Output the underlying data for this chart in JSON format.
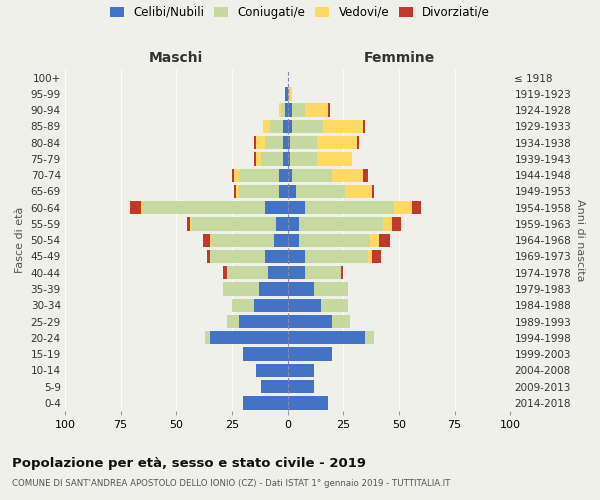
{
  "age_groups": [
    "0-4",
    "5-9",
    "10-14",
    "15-19",
    "20-24",
    "25-29",
    "30-34",
    "35-39",
    "40-44",
    "45-49",
    "50-54",
    "55-59",
    "60-64",
    "65-69",
    "70-74",
    "75-79",
    "80-84",
    "85-89",
    "90-94",
    "95-99",
    "100+"
  ],
  "birth_years": [
    "2014-2018",
    "2009-2013",
    "2004-2008",
    "1999-2003",
    "1994-1998",
    "1989-1993",
    "1984-1988",
    "1979-1983",
    "1974-1978",
    "1969-1973",
    "1964-1968",
    "1959-1963",
    "1954-1958",
    "1949-1953",
    "1944-1948",
    "1939-1943",
    "1934-1938",
    "1929-1933",
    "1924-1928",
    "1919-1923",
    "≤ 1918"
  ],
  "males": {
    "celibe": [
      20,
      12,
      14,
      20,
      35,
      22,
      15,
      13,
      9,
      10,
      6,
      5,
      10,
      4,
      4,
      2,
      2,
      2,
      1,
      1,
      0
    ],
    "coniugato": [
      0,
      0,
      0,
      0,
      2,
      5,
      10,
      16,
      18,
      25,
      28,
      38,
      55,
      18,
      18,
      10,
      8,
      6,
      2,
      0,
      0
    ],
    "vedovo": [
      0,
      0,
      0,
      0,
      0,
      0,
      0,
      0,
      0,
      0,
      1,
      1,
      1,
      1,
      2,
      2,
      4,
      3,
      1,
      0,
      0
    ],
    "divorziato": [
      0,
      0,
      0,
      0,
      0,
      0,
      0,
      0,
      2,
      1,
      3,
      1,
      5,
      1,
      1,
      1,
      1,
      0,
      0,
      0,
      0
    ]
  },
  "females": {
    "celibe": [
      18,
      12,
      12,
      20,
      35,
      20,
      15,
      12,
      8,
      8,
      5,
      5,
      8,
      4,
      2,
      1,
      1,
      2,
      2,
      0,
      0
    ],
    "coniugato": [
      0,
      0,
      0,
      0,
      4,
      8,
      12,
      15,
      16,
      28,
      32,
      38,
      40,
      22,
      18,
      12,
      12,
      14,
      6,
      1,
      0
    ],
    "vedovo": [
      0,
      0,
      0,
      0,
      0,
      0,
      0,
      0,
      0,
      2,
      4,
      4,
      8,
      12,
      14,
      16,
      18,
      18,
      10,
      1,
      0
    ],
    "divorziato": [
      0,
      0,
      0,
      0,
      0,
      0,
      0,
      0,
      1,
      4,
      5,
      4,
      4,
      1,
      2,
      0,
      1,
      1,
      1,
      0,
      0
    ]
  },
  "colors": {
    "celibe": "#4472C4",
    "coniugato": "#c5d9a0",
    "vedovo": "#ffd966",
    "divorziato": "#c0392b"
  },
  "legend_labels": [
    "Celibi/Nubili",
    "Coniugati/e",
    "Vedovi/e",
    "Divorziati/e"
  ],
  "title": "Popolazione per età, sesso e stato civile - 2019",
  "subtitle": "COMUNE DI SANT'ANDREA APOSTOLO DELLO IONIO (CZ) - Dati ISTAT 1° gennaio 2019 - TUTTITALIA.IT",
  "xlabel_left": "Maschi",
  "xlabel_right": "Femmine",
  "ylabel_left": "Fasce di età",
  "ylabel_right": "Anni di nascita",
  "xlim": 100,
  "bg_color": "#f0f0eb"
}
